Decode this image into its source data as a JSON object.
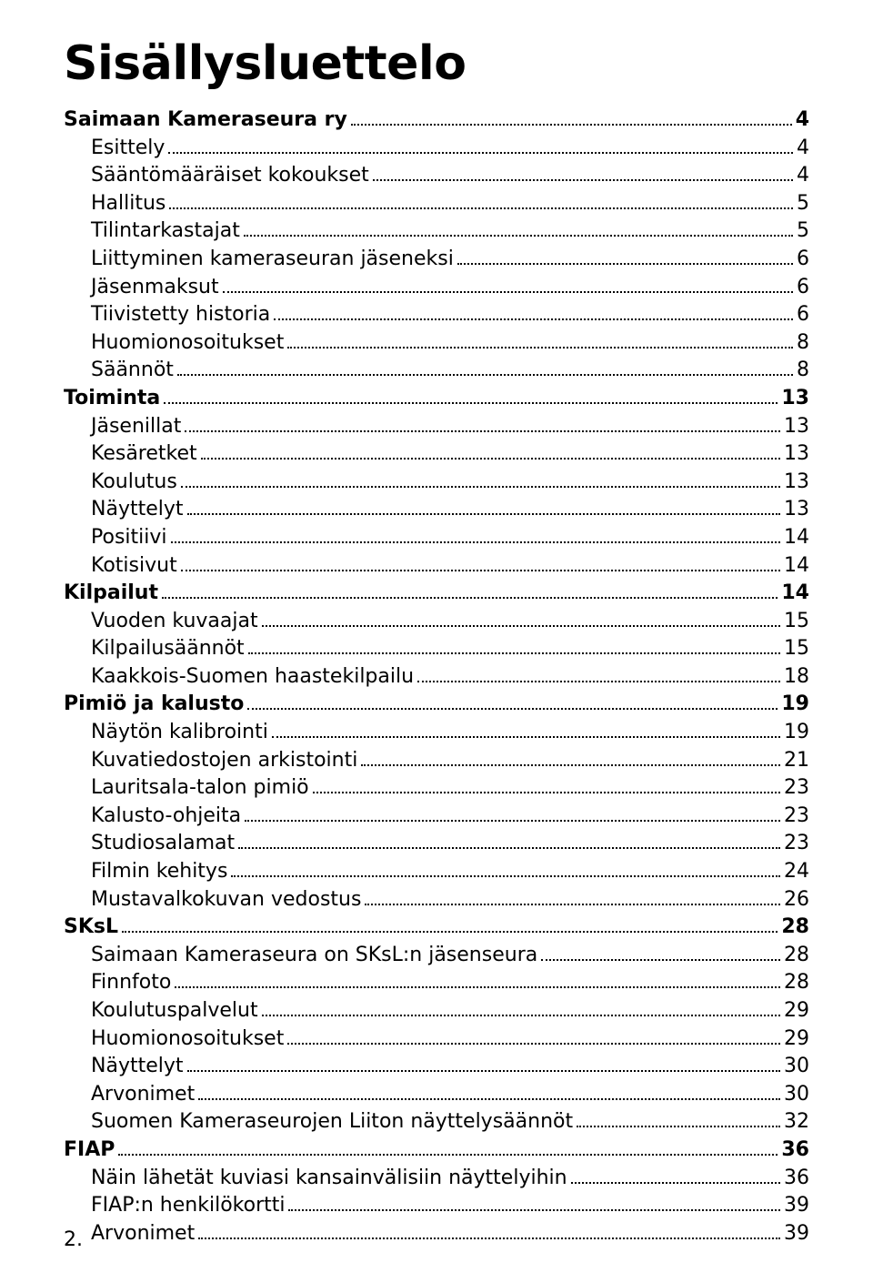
{
  "title": "Sisällysluettelo",
  "footer": "2.",
  "entries": [
    {
      "level": 0,
      "label": "Saimaan Kameraseura ry",
      "page": "4"
    },
    {
      "level": 1,
      "label": "Esittely",
      "page": "4"
    },
    {
      "level": 1,
      "label": "Sääntömääräiset kokoukset",
      "page": "4"
    },
    {
      "level": 1,
      "label": "Hallitus",
      "page": "5"
    },
    {
      "level": 1,
      "label": "Tilintarkastajat",
      "page": "5"
    },
    {
      "level": 1,
      "label": "Liittyminen kameraseuran jäseneksi",
      "page": "6"
    },
    {
      "level": 1,
      "label": "Jäsenmaksut",
      "page": "6"
    },
    {
      "level": 1,
      "label": "Tiivistetty historia",
      "page": "6"
    },
    {
      "level": 1,
      "label": "Huomionosoitukset",
      "page": "8"
    },
    {
      "level": 1,
      "label": "Säännöt",
      "page": "8"
    },
    {
      "level": 0,
      "label": "Toiminta",
      "page": "13"
    },
    {
      "level": 1,
      "label": "Jäsenillat",
      "page": "13"
    },
    {
      "level": 1,
      "label": "Kesäretket",
      "page": "13"
    },
    {
      "level": 1,
      "label": "Koulutus",
      "page": "13"
    },
    {
      "level": 1,
      "label": "Näyttelyt",
      "page": "13"
    },
    {
      "level": 1,
      "label": "Positiivi",
      "page": "14"
    },
    {
      "level": 1,
      "label": "Kotisivut",
      "page": "14"
    },
    {
      "level": 0,
      "label": "Kilpailut",
      "page": "14"
    },
    {
      "level": 1,
      "label": "Vuoden kuvaajat",
      "page": "15"
    },
    {
      "level": 1,
      "label": "Kilpailusäännöt",
      "page": "15"
    },
    {
      "level": 1,
      "label": "Kaakkois-Suomen haastekilpailu",
      "page": "18"
    },
    {
      "level": 0,
      "label": "Pimiö ja kalusto",
      "page": "19"
    },
    {
      "level": 1,
      "label": "Näytön kalibrointi",
      "page": "19"
    },
    {
      "level": 1,
      "label": "Kuvatiedostojen arkistointi",
      "page": "21"
    },
    {
      "level": 1,
      "label": "Lauritsala-talon pimiö",
      "page": "23"
    },
    {
      "level": 1,
      "label": "Kalusto-ohjeita",
      "page": "23"
    },
    {
      "level": 1,
      "label": "Studiosalamat",
      "page": "23"
    },
    {
      "level": 1,
      "label": "Filmin kehitys",
      "page": "24"
    },
    {
      "level": 1,
      "label": "Mustavalkokuvan vedostus",
      "page": "26"
    },
    {
      "level": 0,
      "label": "SKsL",
      "page": "28"
    },
    {
      "level": 1,
      "label": "Saimaan Kameraseura on SKsL:n jäsenseura",
      "page": "28"
    },
    {
      "level": 1,
      "label": "Finnfoto",
      "page": "28"
    },
    {
      "level": 1,
      "label": "Koulutuspalvelut",
      "page": "29"
    },
    {
      "level": 1,
      "label": "Huomionosoitukset",
      "page": "29"
    },
    {
      "level": 1,
      "label": "Näyttelyt",
      "page": "30"
    },
    {
      "level": 1,
      "label": "Arvonimet",
      "page": "30"
    },
    {
      "level": 1,
      "label": "Suomen Kameraseurojen Liiton näyttelysäännöt",
      "page": "32"
    },
    {
      "level": 0,
      "label": "FIAP",
      "page": "36"
    },
    {
      "level": 1,
      "label": "Näin lähetät kuviasi kansainvälisiin näyttelyihin",
      "page": "36"
    },
    {
      "level": 1,
      "label": "FIAP:n henkilökortti",
      "page": "39"
    },
    {
      "level": 1,
      "label": "Arvonimet",
      "page": "39"
    }
  ]
}
